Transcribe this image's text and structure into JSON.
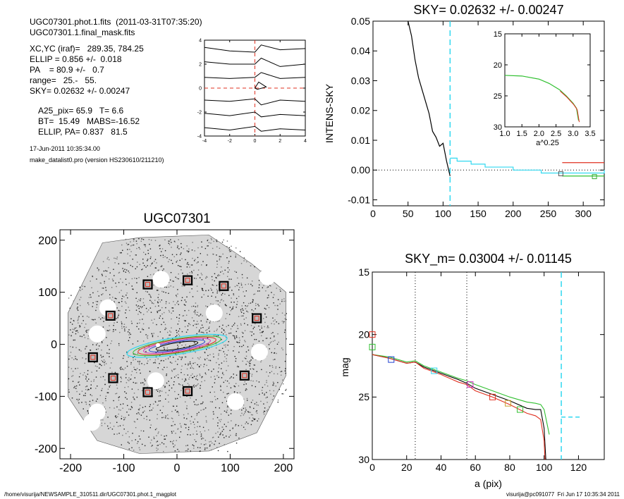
{
  "info": {
    "line1": "UGC07301.phot.1.fits  (2011-03-31T07:35:20)",
    "line2": "UGC07301.1.final_mask.fits",
    "line3": "XC,YC (iraf)=   289.35, 784.25",
    "line4": "ELLIP = 0.856 +/-  0.018",
    "line5": "PA    = 80.9 +/-   0.7",
    "line6": "range=   25.-   55.",
    "line7": "SKY= 0.02632 +/- 0.00247",
    "line8": "A25_pix= 65.9   T= 6.6",
    "line9": "BT=  15.49   MABS=-16.52",
    "line10": "ELLIP, PA= 0.837   81.5",
    "date": "17-Jun-2011 10:35:34.00",
    "program": "make_datalist0.pro (version HS230610/211210)"
  },
  "footer": {
    "left": "/home/visurija/NEWSAMPLE_310511.dir/UGC07301.phot.1_magplot",
    "right": "visurija@pc091077  Fri Jun 17 10:35:34 2011"
  },
  "colors": {
    "cyan": "#30d8f0",
    "red": "#e03020",
    "green": "#30c030",
    "blue": "#2040d0",
    "magenta": "#d030c0"
  },
  "chart_data": [
    {
      "type": "line",
      "id": "contour",
      "title": "",
      "xlim": [
        -4,
        4
      ],
      "ylim": [
        -4,
        4
      ],
      "xticks": [
        "-4",
        "-2",
        "0",
        "2",
        "4"
      ],
      "yticks": [
        "-4",
        "-2",
        "0",
        "2",
        "4"
      ],
      "series": [
        {
          "x": [
            -4,
            -2,
            0,
            0.5,
            2,
            4
          ],
          "y": [
            3.4,
            3.1,
            3.0,
            3.6,
            3.2,
            3.3
          ]
        },
        {
          "x": [
            -4,
            -2,
            0,
            0.5,
            2,
            4
          ],
          "y": [
            2.2,
            2.0,
            2.0,
            2.5,
            1.8,
            2.0
          ]
        },
        {
          "x": [
            -4,
            -2,
            0,
            0.5,
            2,
            4
          ],
          "y": [
            0.9,
            0.8,
            0.9,
            1.3,
            0.8,
            0.9
          ]
        },
        {
          "x": [
            -4,
            -2,
            0,
            0.5,
            2,
            4
          ],
          "y": [
            -1.0,
            -1.1,
            -0.9,
            -1.4,
            -1.0,
            -1.1
          ]
        },
        {
          "x": [
            -4,
            -2,
            0,
            0.5,
            2,
            4
          ],
          "y": [
            -2.1,
            -2.3,
            -2.0,
            -2.4,
            -2.2,
            -2.3
          ]
        },
        {
          "x": [
            -4,
            -2,
            0,
            0.5,
            2,
            4
          ],
          "y": [
            -3.3,
            -3.5,
            -3.2,
            -3.6,
            -3.4,
            -3.5
          ]
        }
      ]
    },
    {
      "type": "line",
      "id": "sky",
      "title": "SKY= 0.02632 +/- 0.00247",
      "ylabel": "INTENS-SKY",
      "xlim": [
        0,
        330
      ],
      "ylim": [
        -0.012,
        0.05
      ],
      "xticks": [
        "0",
        "50",
        "100",
        "150",
        "200",
        "250",
        "300"
      ],
      "yticks": [
        "-0.01",
        "0.00",
        "0.01",
        "0.02",
        "0.03",
        "0.04",
        "0.05"
      ],
      "vline": 110,
      "series": [
        {
          "name": "",
          "color": "black",
          "x": [
            50,
            55,
            60,
            65,
            70,
            75,
            80,
            85,
            90,
            95,
            100,
            105,
            110
          ],
          "y": [
            0.05,
            0.045,
            0.037,
            0.031,
            0.027,
            0.023,
            0.019,
            0.013,
            0.011,
            0.008,
            0.009,
            0.003,
            -0.002
          ]
        },
        {
          "name": "",
          "color": "cyan",
          "x": [
            110,
            120,
            140,
            160,
            180,
            200,
            220,
            240,
            260,
            270,
            290,
            330
          ],
          "y": [
            0.004,
            0.003,
            0.002,
            0.001,
            0.001,
            0.0,
            0.0,
            -0.001,
            -0.001,
            -0.001,
            -0.001,
            0.0
          ]
        },
        {
          "name": "",
          "color": "red",
          "x": [
            270,
            330
          ],
          "y": [
            0.0025,
            0.0025
          ]
        },
        {
          "name": "",
          "color": "green",
          "x": [
            270,
            330
          ],
          "y": [
            -0.002,
            -0.002
          ]
        }
      ]
    },
    {
      "type": "line",
      "id": "inset",
      "title": "",
      "xlabel": "a^0.25",
      "xlim": [
        1.0,
        3.5
      ],
      "ylim": [
        30,
        15
      ],
      "xticks": [
        "1.0",
        "1.5",
        "2.0",
        "2.5",
        "3.0",
        "3.5"
      ],
      "yticks": [
        "15",
        "20",
        "25",
        "30"
      ],
      "series": [
        {
          "name": "",
          "color": "green",
          "x": [
            1.0,
            1.5,
            2.0,
            2.3,
            2.6,
            2.8,
            3.0,
            3.1,
            3.16
          ],
          "y": [
            21.7,
            21.8,
            22.3,
            23.0,
            24.0,
            25.0,
            26.2,
            27.0,
            29.0
          ]
        }
      ]
    },
    {
      "type": "scatter",
      "id": "image",
      "title": "UGC07301",
      "xlim": [
        -220,
        220
      ],
      "ylim": [
        -220,
        220
      ],
      "xticks": [
        "-200",
        "-100",
        "0",
        "100",
        "200"
      ],
      "yticks": [
        "-200",
        "-100",
        "0",
        "100",
        "200"
      ],
      "boxes_x": [
        -55,
        20,
        88,
        -125,
        150,
        -158,
        -120,
        -55,
        20,
        127
      ],
      "boxes_y": [
        115,
        123,
        112,
        55,
        50,
        -25,
        -65,
        -92,
        -90,
        -60
      ]
    },
    {
      "type": "line",
      "id": "mag",
      "title": "SKY_m=  0.03004 +/- 0.01145",
      "xlabel": "a (pix)",
      "ylabel": "mag",
      "xlim": [
        0,
        135
      ],
      "ylim": [
        30,
        15
      ],
      "xticks": [
        "0",
        "20",
        "40",
        "60",
        "80",
        "100",
        "120"
      ],
      "yticks": [
        "15",
        "20",
        "25",
        "30"
      ],
      "dotted_vlines": [
        25,
        55
      ],
      "cyan_vline": 110,
      "series": [
        {
          "name": "",
          "color": "black",
          "x": [
            0,
            10,
            20,
            25,
            30,
            40,
            50,
            55,
            60,
            70,
            80,
            90,
            95,
            98,
            100,
            101
          ],
          "y": [
            21.6,
            21.9,
            22.3,
            22.2,
            22.6,
            23.1,
            23.6,
            23.9,
            24.3,
            24.8,
            25.3,
            25.9,
            26.0,
            26.0,
            27.5,
            30
          ]
        },
        {
          "name": "",
          "color": "green",
          "x": [
            0,
            10,
            20,
            25,
            30,
            40,
            50,
            55,
            60,
            70,
            80,
            90,
            95,
            98,
            100,
            103
          ],
          "y": [
            21.6,
            21.8,
            22.2,
            22.1,
            22.5,
            23.0,
            23.5,
            23.7,
            24.0,
            24.5,
            25.0,
            25.4,
            25.5,
            25.6,
            26.0,
            28.0
          ]
        },
        {
          "name": "",
          "color": "red",
          "x": [
            0,
            10,
            20,
            25,
            30,
            40,
            50,
            55,
            60,
            70,
            80,
            90,
            95,
            98,
            100,
            100.5
          ],
          "y": [
            21.6,
            21.9,
            22.3,
            22.2,
            22.7,
            23.2,
            23.8,
            24.0,
            24.5,
            25.0,
            25.6,
            26.3,
            26.5,
            26.8,
            28.5,
            30
          ]
        }
      ]
    }
  ]
}
